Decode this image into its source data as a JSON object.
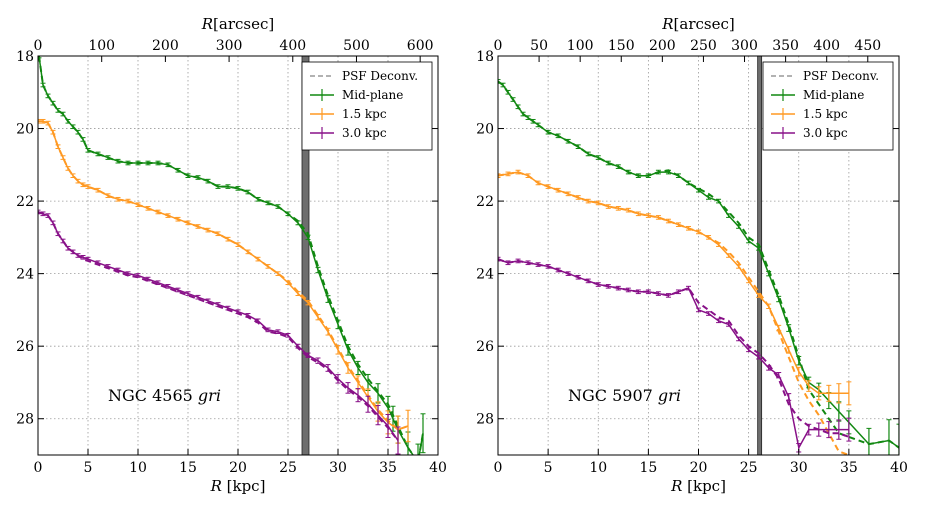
{
  "chart_data": [
    {
      "type": "line",
      "galaxy": "NGC 4565",
      "annotation": "NGC 4565",
      "annotation_bands": "gri",
      "xlabel_var": "R",
      "xlabel_unit": "[kpc]",
      "top_xlabel_var": "R",
      "top_xlabel_unit": "[arcsec]",
      "ylabel": "",
      "xlim": [
        0,
        40
      ],
      "ylim": [
        29,
        18
      ],
      "xticks": [
        0,
        5,
        10,
        15,
        20,
        25,
        30,
        35,
        40
      ],
      "yticks": [
        18,
        20,
        22,
        24,
        26,
        28
      ],
      "top_ticks": [
        0,
        100,
        200,
        300,
        400,
        500,
        600
      ],
      "arcsec_per_kpc": 15.7,
      "psf_marker_kpc": [
        26.4,
        27.1
      ],
      "legend": [
        "PSF Deconv.",
        "Mid-plane",
        "1.5 kpc",
        "3.0 kpc"
      ],
      "series": [
        {
          "name": "Mid-plane",
          "color": "#118811",
          "x": [
            0.1,
            0.5,
            1,
            1.5,
            2,
            2.5,
            3,
            3.5,
            4,
            4.5,
            5,
            6,
            7,
            8,
            9,
            10,
            11,
            12,
            13,
            14,
            15,
            16,
            17,
            18,
            19,
            20,
            21,
            22,
            23,
            24,
            25,
            26,
            27,
            28,
            29,
            30,
            31,
            32,
            33,
            34,
            35,
            35.5,
            36,
            37,
            38,
            38.5
          ],
          "y": [
            18.0,
            18.8,
            19.1,
            19.3,
            19.5,
            19.6,
            19.8,
            19.95,
            20.1,
            20.3,
            20.6,
            20.7,
            20.8,
            20.9,
            20.95,
            20.95,
            20.95,
            20.95,
            21.0,
            21.15,
            21.3,
            21.35,
            21.45,
            21.6,
            21.6,
            21.65,
            21.75,
            21.95,
            22.05,
            22.15,
            22.35,
            22.6,
            23.0,
            23.9,
            24.7,
            25.4,
            26.1,
            26.6,
            27.0,
            27.3,
            27.7,
            28.0,
            28.3,
            28.8,
            29.2,
            28.4
          ],
          "dashed_y": [
            18.0,
            18.8,
            19.1,
            19.3,
            19.5,
            19.6,
            19.8,
            19.95,
            20.1,
            20.3,
            20.6,
            20.7,
            20.8,
            20.9,
            20.95,
            20.95,
            20.95,
            20.95,
            21.0,
            21.15,
            21.3,
            21.35,
            21.45,
            21.6,
            21.6,
            21.65,
            21.75,
            21.95,
            22.05,
            22.15,
            22.35,
            22.55,
            22.9,
            23.8,
            24.6,
            25.3,
            26.0,
            26.5,
            26.9,
            27.25,
            27.6,
            27.9,
            28.2,
            28.8,
            29.2,
            28.4
          ]
        },
        {
          "name": "1.5 kpc",
          "color": "#ff9922",
          "x": [
            0,
            0.5,
            1,
            1.5,
            2,
            2.5,
            3,
            3.5,
            4,
            4.5,
            5,
            6,
            7,
            8,
            9,
            10,
            11,
            12,
            13,
            14,
            15,
            16,
            17,
            18,
            19,
            20,
            21,
            22,
            23,
            24,
            25,
            26,
            27,
            28,
            29,
            30,
            31,
            32,
            33,
            34,
            35,
            36,
            37
          ],
          "y": [
            19.8,
            19.8,
            19.85,
            20.1,
            20.5,
            20.8,
            21.1,
            21.3,
            21.45,
            21.55,
            21.6,
            21.7,
            21.85,
            21.95,
            22.0,
            22.1,
            22.2,
            22.3,
            22.4,
            22.5,
            22.6,
            22.7,
            22.8,
            22.9,
            23.05,
            23.2,
            23.4,
            23.6,
            23.8,
            24.0,
            24.25,
            24.55,
            24.8,
            25.2,
            25.6,
            26.1,
            26.6,
            27.0,
            27.4,
            27.8,
            28.1,
            28.3,
            28.2
          ],
          "dashed_y": [
            19.8,
            19.8,
            19.85,
            20.1,
            20.5,
            20.8,
            21.1,
            21.3,
            21.45,
            21.55,
            21.6,
            21.7,
            21.85,
            21.95,
            22.0,
            22.1,
            22.2,
            22.3,
            22.4,
            22.5,
            22.6,
            22.7,
            22.8,
            22.9,
            23.05,
            23.2,
            23.4,
            23.6,
            23.8,
            24.0,
            24.2,
            24.5,
            24.75,
            25.15,
            25.55,
            26.05,
            26.55,
            26.95,
            27.35,
            27.75,
            28.05,
            28.3,
            28.2
          ]
        },
        {
          "name": "3.0 kpc",
          "color": "#881188",
          "x": [
            0,
            0.5,
            1,
            1.5,
            2,
            2.5,
            3,
            3.5,
            4,
            4.5,
            5,
            6,
            7,
            8,
            9,
            10,
            11,
            12,
            13,
            14,
            15,
            16,
            17,
            18,
            19,
            20,
            21,
            22,
            23,
            24,
            25,
            26,
            27,
            28,
            29,
            30,
            31,
            32,
            33,
            34,
            35,
            36
          ],
          "y": [
            22.3,
            22.35,
            22.4,
            22.6,
            22.9,
            23.1,
            23.3,
            23.4,
            23.5,
            23.55,
            23.6,
            23.7,
            23.8,
            23.9,
            24.0,
            24.05,
            24.15,
            24.25,
            24.35,
            24.45,
            24.55,
            24.65,
            24.75,
            24.85,
            24.95,
            25.05,
            25.15,
            25.3,
            25.55,
            25.6,
            25.7,
            26.0,
            26.25,
            26.4,
            26.6,
            26.9,
            27.15,
            27.35,
            27.6,
            27.9,
            28.2,
            28.6
          ],
          "dashed_y": [
            22.3,
            22.35,
            22.4,
            22.6,
            22.9,
            23.1,
            23.3,
            23.4,
            23.5,
            23.6,
            23.65,
            23.75,
            23.85,
            23.95,
            24.05,
            24.1,
            24.2,
            24.3,
            24.4,
            24.5,
            24.6,
            24.7,
            24.8,
            24.9,
            25.0,
            25.1,
            25.2,
            25.35,
            25.6,
            25.65,
            25.75,
            26.05,
            26.3,
            26.45,
            26.65,
            26.95,
            27.2,
            27.4,
            27.65,
            27.95,
            28.25,
            28.6
          ]
        }
      ]
    },
    {
      "type": "line",
      "galaxy": "NGC 5907",
      "annotation": "NGC 5907",
      "annotation_bands": "gri",
      "xlabel_var": "R",
      "xlabel_unit": "[kpc]",
      "top_xlabel_var": "R",
      "top_xlabel_unit": "[arcsec]",
      "ylabel": "",
      "xlim": [
        0,
        40
      ],
      "ylim": [
        29,
        18
      ],
      "xticks": [
        0,
        5,
        10,
        15,
        20,
        25,
        30,
        35,
        40
      ],
      "yticks": [
        18,
        20,
        22,
        24,
        26,
        28
      ],
      "top_ticks": [
        0,
        50,
        100,
        150,
        200,
        250,
        300,
        350,
        400,
        450
      ],
      "arcsec_per_kpc": 12.2,
      "psf_marker_kpc": [
        25.9,
        26.3
      ],
      "legend": [
        "PSF Deconv.",
        "Mid-plane",
        "1.5 kpc",
        "3.0 kpc"
      ],
      "series": [
        {
          "name": "Mid-plane",
          "color": "#118811",
          "x": [
            0,
            0.5,
            1,
            1.5,
            2,
            2.5,
            3,
            3.5,
            4,
            5,
            6,
            7,
            8,
            9,
            10,
            11,
            12,
            13,
            14,
            15,
            16,
            17,
            18,
            19,
            20,
            21,
            22,
            23,
            24,
            25,
            26,
            27,
            28,
            29,
            30,
            31,
            32,
            33,
            34,
            35,
            37,
            39,
            40
          ],
          "y": [
            18.7,
            18.8,
            19.0,
            19.2,
            19.4,
            19.6,
            19.7,
            19.8,
            19.9,
            20.1,
            20.2,
            20.35,
            20.5,
            20.7,
            20.8,
            20.95,
            21.05,
            21.2,
            21.3,
            21.3,
            21.2,
            21.2,
            21.3,
            21.5,
            21.7,
            21.9,
            22.0,
            22.4,
            22.7,
            23.1,
            23.3,
            24.0,
            24.7,
            25.5,
            26.4,
            27.0,
            27.2,
            27.5,
            27.8,
            28.1,
            28.7,
            28.6,
            28.8
          ],
          "dashed_y": [
            18.7,
            18.8,
            19.0,
            19.2,
            19.4,
            19.6,
            19.7,
            19.8,
            19.9,
            20.1,
            20.2,
            20.35,
            20.5,
            20.7,
            20.8,
            20.95,
            21.05,
            21.2,
            21.3,
            21.3,
            21.2,
            21.15,
            21.3,
            21.5,
            21.65,
            21.8,
            22.0,
            22.3,
            22.6,
            23.0,
            23.2,
            23.9,
            24.6,
            25.4,
            26.3,
            27.2,
            27.6,
            28.0,
            28.4,
            28.5,
            28.7,
            28.6,
            28.8
          ]
        },
        {
          "name": "1.5 kpc",
          "color": "#ff9922",
          "x": [
            0,
            1,
            2,
            3,
            4,
            5,
            6,
            7,
            8,
            9,
            10,
            11,
            12,
            13,
            14,
            15,
            16,
            17,
            18,
            19,
            20,
            21,
            22,
            23,
            24,
            25,
            26,
            27,
            28,
            29,
            30,
            31,
            32,
            33,
            34,
            35
          ],
          "y": [
            21.3,
            21.25,
            21.2,
            21.3,
            21.5,
            21.6,
            21.7,
            21.8,
            21.9,
            22.0,
            22.05,
            22.15,
            22.2,
            22.25,
            22.35,
            22.4,
            22.45,
            22.55,
            22.65,
            22.75,
            22.85,
            23.0,
            23.2,
            23.5,
            23.8,
            24.2,
            24.6,
            24.9,
            25.5,
            26.1,
            26.7,
            27.1,
            27.3,
            27.3,
            27.3,
            27.3
          ],
          "dashed_y": [
            21.3,
            21.25,
            21.2,
            21.3,
            21.5,
            21.6,
            21.7,
            21.8,
            21.9,
            22.0,
            22.05,
            22.15,
            22.2,
            22.25,
            22.35,
            22.4,
            22.45,
            22.55,
            22.65,
            22.75,
            22.85,
            23.0,
            23.15,
            23.4,
            23.7,
            24.1,
            24.5,
            24.9,
            25.6,
            26.3,
            27.0,
            27.5,
            27.9,
            28.4,
            28.9,
            29.0
          ]
        },
        {
          "name": "3.0 kpc",
          "color": "#881188",
          "x": [
            0,
            1,
            2,
            3,
            4,
            5,
            6,
            7,
            8,
            9,
            10,
            11,
            12,
            13,
            14,
            15,
            16,
            17,
            18,
            19,
            20,
            21,
            22,
            23,
            24,
            25,
            26,
            27,
            28,
            29,
            30,
            31,
            32,
            33,
            34,
            35
          ],
          "y": [
            23.6,
            23.7,
            23.65,
            23.7,
            23.75,
            23.8,
            23.9,
            24.0,
            24.1,
            24.2,
            24.3,
            24.35,
            24.4,
            24.45,
            24.5,
            24.5,
            24.55,
            24.6,
            24.5,
            24.4,
            25.0,
            25.1,
            25.3,
            25.4,
            25.8,
            26.1,
            26.3,
            26.6,
            26.8,
            27.4,
            28.8,
            28.3,
            28.3,
            28.3,
            28.3,
            28.3
          ],
          "dashed_y": [
            23.6,
            23.7,
            23.65,
            23.7,
            23.75,
            23.8,
            23.9,
            24.0,
            24.1,
            24.2,
            24.3,
            24.35,
            24.4,
            24.45,
            24.5,
            24.5,
            24.55,
            24.6,
            24.5,
            24.4,
            24.8,
            25.0,
            25.2,
            25.3,
            25.7,
            26.0,
            26.2,
            26.5,
            26.9,
            27.6,
            28.0,
            28.2,
            28.3,
            28.4,
            28.4,
            28.5
          ]
        }
      ]
    }
  ]
}
